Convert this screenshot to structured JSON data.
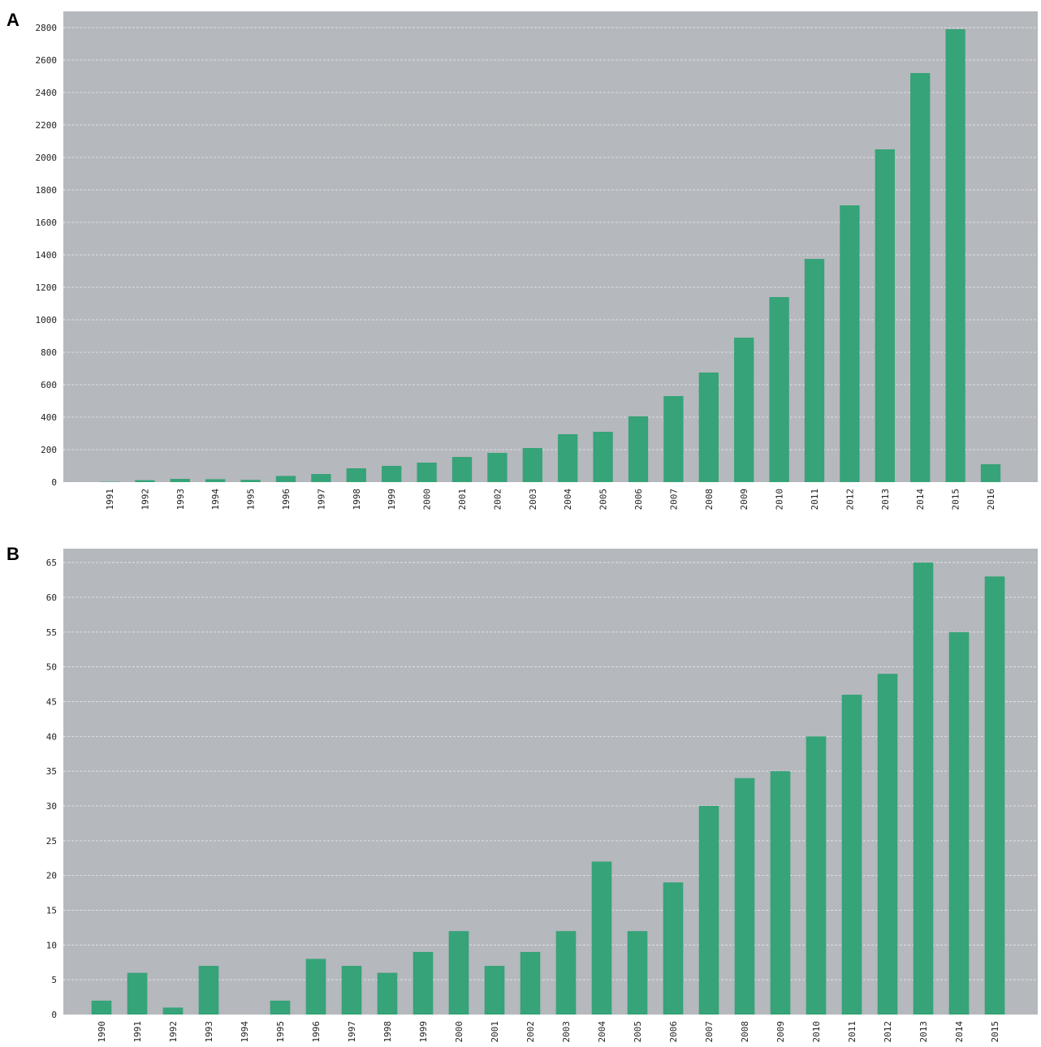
{
  "chart_data": [
    {
      "panel_label": "A",
      "type": "bar",
      "categories": [
        "1991",
        "1992",
        "1993",
        "1994",
        "1995",
        "1996",
        "1997",
        "1998",
        "1999",
        "2000",
        "2001",
        "2002",
        "2003",
        "2004",
        "2005",
        "2006",
        "2007",
        "2008",
        "2009",
        "2010",
        "2011",
        "2012",
        "2013",
        "2014",
        "2015",
        "2016"
      ],
      "values": [
        2,
        12,
        20,
        18,
        14,
        38,
        50,
        85,
        100,
        120,
        155,
        180,
        210,
        295,
        310,
        405,
        530,
        675,
        890,
        1140,
        1375,
        1705,
        2050,
        2520,
        2790,
        110
      ],
      "ylim": [
        0,
        2900
      ],
      "yticks": [
        0,
        200,
        400,
        600,
        800,
        1000,
        1200,
        1400,
        1600,
        1800,
        2000,
        2200,
        2400,
        2600,
        2800
      ],
      "grid": true,
      "title": "",
      "xlabel": "",
      "ylabel": ""
    },
    {
      "panel_label": "B",
      "type": "bar",
      "categories": [
        "1990",
        "1991",
        "1992",
        "1993",
        "1994",
        "1995",
        "1996",
        "1997",
        "1998",
        "1999",
        "2000",
        "2001",
        "2002",
        "2003",
        "2004",
        "2005",
        "2006",
        "2007",
        "2008",
        "2009",
        "2010",
        "2011",
        "2012",
        "2013",
        "2014",
        "2015"
      ],
      "values": [
        2,
        6,
        1,
        7,
        0,
        2,
        8,
        7,
        6,
        9,
        12,
        7,
        9,
        12,
        22,
        12,
        19,
        30,
        34,
        35,
        40,
        46,
        49,
        65,
        55,
        63
      ],
      "ylim": [
        0,
        67
      ],
      "yticks": [
        0,
        5,
        10,
        15,
        20,
        25,
        30,
        35,
        40,
        45,
        50,
        55,
        60,
        65
      ],
      "grid": true,
      "title": "",
      "xlabel": "",
      "ylabel": ""
    }
  ],
  "colors": {
    "bar": "#36a378",
    "plot_background": "#b5b8bd",
    "grid": "#dfe1e4"
  }
}
